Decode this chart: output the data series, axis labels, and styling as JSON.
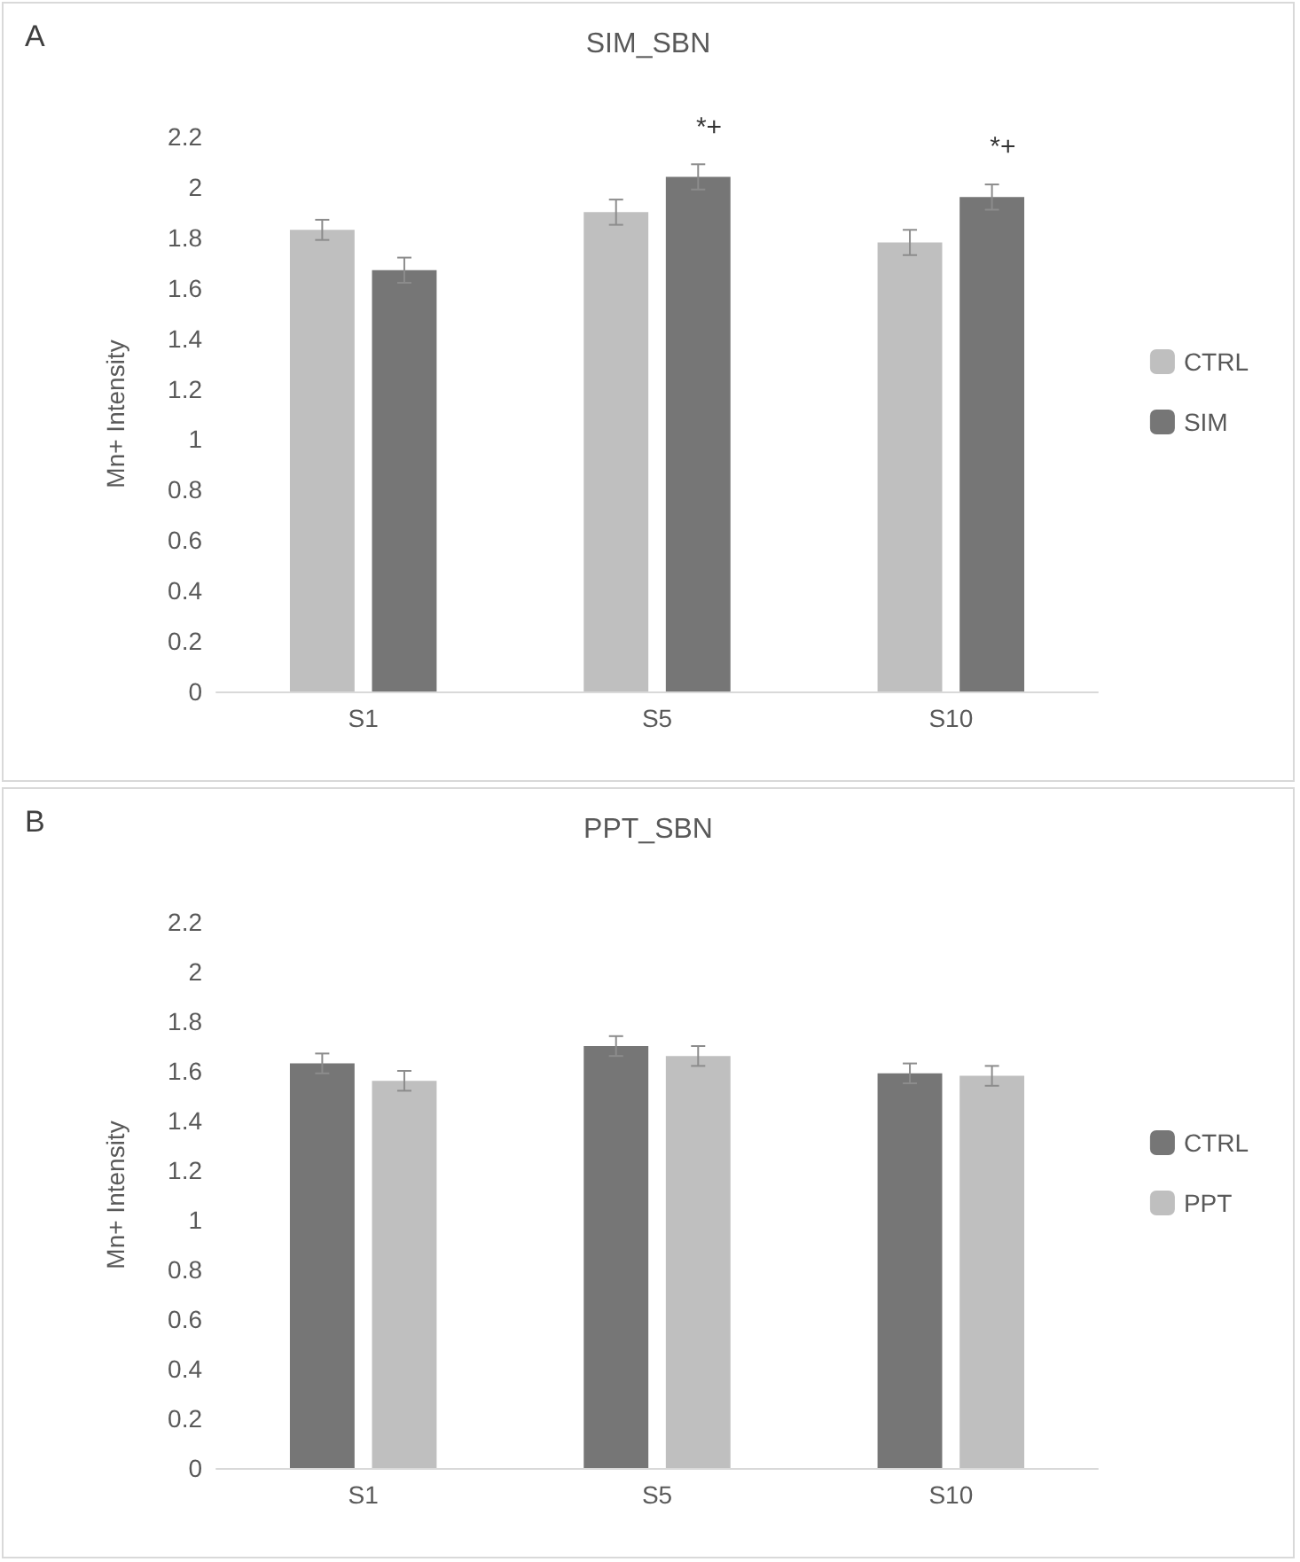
{
  "chart_data": [
    {
      "type": "bar",
      "title": "SIM_SBN",
      "ylabel": "Mn+ Intensity",
      "categories": [
        "S1",
        "S5",
        "S10"
      ],
      "series": [
        {
          "name": "CTRL",
          "color": "#bfbfbf",
          "values": [
            1.83,
            1.9,
            1.78
          ],
          "errors": [
            0.04,
            0.05,
            0.05
          ]
        },
        {
          "name": "SIM",
          "color": "#767676",
          "values": [
            1.67,
            2.04,
            1.96
          ],
          "errors": [
            0.05,
            0.05,
            0.05
          ]
        }
      ],
      "ylim": [
        0,
        2.2
      ],
      "yticks": [
        0,
        0.2,
        0.4,
        0.6,
        0.8,
        1,
        1.2,
        1.4,
        1.6,
        1.8,
        2,
        2.2
      ],
      "grid": false,
      "legend": "right",
      "annotations": [
        "A",
        {
          "text": "*+",
          "x": "S5",
          "y": 2.04
        },
        {
          "text": "*+",
          "x": "S10",
          "y": 1.96
        }
      ]
    },
    {
      "type": "bar",
      "title": "PPT_SBN",
      "ylabel": "Mn+ Intensity",
      "categories": [
        "S1",
        "S5",
        "S10"
      ],
      "series": [
        {
          "name": "CTRL",
          "color": "#767676",
          "values": [
            1.63,
            1.7,
            1.59
          ],
          "errors": [
            0.04,
            0.04,
            0.04
          ]
        },
        {
          "name": "PPT",
          "color": "#bfbfbf",
          "values": [
            1.56,
            1.66,
            1.58
          ],
          "errors": [
            0.04,
            0.04,
            0.04
          ]
        }
      ],
      "ylim": [
        0,
        2.2
      ],
      "yticks": [
        0,
        0.2,
        0.4,
        0.6,
        0.8,
        1,
        1.2,
        1.4,
        1.6,
        1.8,
        2,
        2.2
      ],
      "grid": false,
      "legend": "right",
      "annotations": [
        "B"
      ]
    }
  ]
}
